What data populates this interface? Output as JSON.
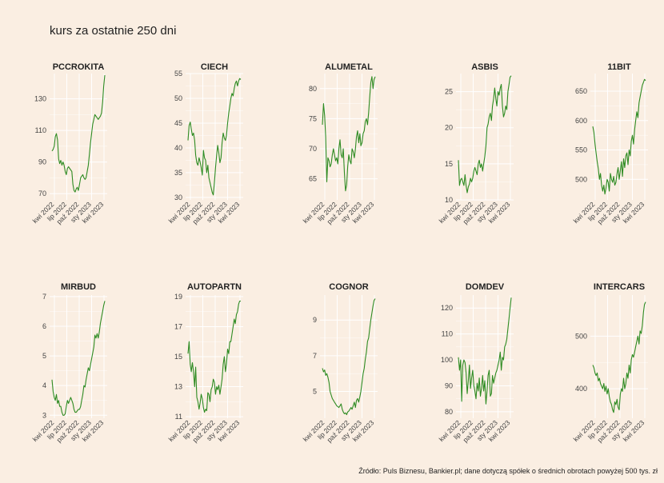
{
  "title": "kurs za ostatnie 250 dni",
  "source": "Źródło: Puls Biznesu, Bankier.pl; dane dotyczą spółek o średnich obrotach powyżej 500 tys. zł",
  "line_color": "#2e8b22",
  "background": "#faeee2",
  "x_ticks": [
    "kwi 2022",
    "lip 2022",
    "paź 2022",
    "sty 2023",
    "kwi 2023"
  ],
  "chart_data": [
    {
      "type": "line",
      "title": "PCCROKITA",
      "y_ticks": [
        70,
        90,
        110,
        130
      ],
      "ylim": [
        66,
        146
      ],
      "values": [
        97,
        98,
        100,
        106,
        108,
        104,
        92,
        89,
        91,
        88,
        90,
        88,
        84,
        82,
        86,
        87,
        86,
        85,
        84,
        76,
        72,
        71,
        73,
        74,
        72,
        76,
        80,
        81,
        82,
        80,
        79,
        80,
        84,
        88,
        95,
        102,
        108,
        114,
        117,
        120,
        119,
        118,
        117,
        118,
        119,
        121,
        128,
        138,
        145
      ]
    },
    {
      "type": "line",
      "title": "CIECH",
      "y_ticks": [
        30,
        35,
        40,
        45,
        50,
        55
      ],
      "ylim": [
        29.5,
        55
      ],
      "values": [
        41.5,
        44.5,
        45.2,
        43.8,
        42.5,
        43,
        41.5,
        38.5,
        37,
        36.5,
        38,
        37.2,
        36,
        34.5,
        39.5,
        38,
        37.5,
        35,
        36.5,
        34,
        33,
        32,
        31,
        30.5,
        33,
        36,
        38.5,
        40.5,
        39,
        37,
        38,
        41,
        43,
        42,
        41.5,
        42.5,
        45,
        47,
        48.5,
        50,
        51,
        50.5,
        52,
        53,
        53.5,
        52.5,
        53.5,
        54,
        53.8
      ]
    },
    {
      "type": "line",
      "title": "ALUMETAL",
      "y_ticks": [
        65,
        70,
        75,
        80
      ],
      "ylim": [
        61.5,
        82.5
      ],
      "values": [
        74,
        77.5,
        75.5,
        72,
        64.5,
        68.5,
        68,
        67,
        67.5,
        69,
        70,
        69,
        68,
        68.5,
        67.5,
        70,
        71.5,
        69,
        68.5,
        70,
        66,
        63,
        64,
        67,
        69,
        68,
        67.5,
        70,
        69.5,
        68.5,
        70,
        72,
        73,
        71,
        72.5,
        70.5,
        71,
        72.5,
        73,
        74.5,
        75,
        74,
        76,
        78.5,
        81,
        82,
        80,
        81.5,
        82
      ]
    },
    {
      "type": "line",
      "title": "ASBIS",
      "y_ticks": [
        10,
        15,
        20,
        25
      ],
      "ylim": [
        10,
        27.5
      ],
      "values": [
        15.5,
        12,
        12.8,
        13,
        12.5,
        12,
        13.5,
        12,
        11,
        11.8,
        12.2,
        13,
        12.5,
        13,
        14,
        14.5,
        14,
        13.5,
        15,
        15.5,
        14.5,
        15,
        14,
        15,
        16,
        17.5,
        20,
        20.5,
        21.5,
        22,
        21,
        23,
        24,
        25.5,
        24,
        23,
        25,
        24.5,
        25.5,
        26,
        23,
        21.5,
        22,
        23,
        22.5,
        25,
        26,
        27,
        27.2
      ]
    },
    {
      "type": "line",
      "title": "11BIT",
      "y_ticks": [
        500,
        550,
        600,
        650
      ],
      "ylim": [
        465,
        680
      ],
      "values": [
        590,
        580,
        560,
        545,
        530,
        518,
        500,
        510,
        490,
        480,
        490,
        475,
        485,
        500,
        495,
        480,
        510,
        500,
        495,
        505,
        490,
        495,
        510,
        520,
        500,
        515,
        530,
        505,
        535,
        520,
        540,
        545,
        525,
        550,
        540,
        565,
        575,
        560,
        585,
        600,
        615,
        605,
        630,
        640,
        650,
        660,
        665,
        670,
        668
      ]
    },
    {
      "type": "line",
      "title": "MIRBUD",
      "y_ticks": [
        3,
        4,
        5,
        6,
        7
      ],
      "ylim": [
        2.9,
        7.05
      ],
      "values": [
        4.2,
        3.8,
        3.6,
        3.5,
        3.7,
        3.4,
        3.5,
        3.3,
        3.3,
        3.1,
        3.0,
        3.0,
        3.05,
        3.3,
        3.5,
        3.4,
        3.5,
        3.6,
        3.5,
        3.4,
        3.2,
        3.1,
        3.1,
        3.15,
        3.2,
        3.2,
        3.3,
        3.5,
        3.7,
        4.0,
        3.95,
        4.2,
        4.4,
        4.6,
        4.5,
        4.7,
        4.9,
        5.1,
        5.3,
        5.7,
        5.6,
        5.75,
        5.6,
        5.8,
        6.1,
        6.3,
        6.5,
        6.7,
        6.85
      ]
    },
    {
      "type": "line",
      "title": "AUTOPARTN",
      "y_ticks": [
        11,
        13,
        15,
        17,
        19
      ],
      "ylim": [
        10.9,
        19.1
      ],
      "values": [
        15.2,
        16,
        14.5,
        14,
        14.6,
        14,
        13,
        14.3,
        12.3,
        12,
        11.5,
        11.9,
        12.5,
        12.2,
        11.6,
        11.3,
        11.5,
        11.4,
        12.6,
        12.5,
        12,
        12.8,
        13,
        13.5,
        13.3,
        12.5,
        13,
        12.8,
        13.1,
        12.5,
        13,
        13.5,
        14.5,
        15,
        14,
        14.5,
        15.5,
        15.2,
        16,
        16,
        16.5,
        17,
        17.5,
        17.2,
        17.8,
        18,
        18.5,
        18.7,
        18.7
      ]
    },
    {
      "type": "line",
      "title": "COGNOR",
      "y_ticks": [
        5,
        7,
        9
      ],
      "ylim": [
        3.5,
        10.4
      ],
      "values": [
        6.3,
        6.1,
        6.2,
        5.9,
        6.0,
        5.8,
        5.5,
        5.0,
        4.8,
        4.6,
        4.5,
        4.4,
        4.3,
        4.2,
        4.15,
        4.1,
        4.2,
        4.3,
        4.0,
        3.85,
        3.75,
        3.8,
        3.7,
        3.85,
        3.9,
        4.0,
        4.1,
        4.0,
        4.2,
        4.4,
        4.1,
        4.5,
        4.6,
        4.4,
        4.7,
        5.0,
        5.5,
        6.0,
        6.3,
        6.8,
        7.2,
        7.8,
        8.0,
        8.5,
        9.0,
        9.4,
        9.8,
        10.1,
        10.2
      ]
    },
    {
      "type": "line",
      "title": "DOMDEV",
      "y_ticks": [
        80,
        90,
        100,
        110,
        120
      ],
      "ylim": [
        77.5,
        125
      ],
      "values": [
        101,
        96,
        100,
        84,
        98,
        100,
        99,
        95,
        87,
        92,
        98,
        89,
        93,
        96,
        90,
        88,
        85,
        91,
        88,
        93,
        86,
        89,
        94,
        88,
        92,
        83,
        88,
        94,
        96,
        86,
        87,
        94,
        91,
        93,
        95,
        96,
        98,
        100,
        103,
        96,
        101,
        100,
        105,
        106,
        108,
        112,
        116,
        120,
        124
      ]
    },
    {
      "type": "line",
      "title": "INTERCARS",
      "y_ticks": [
        400,
        500
      ],
      "ylim": [
        344,
        578
      ],
      "values": [
        445,
        440,
        430,
        425,
        430,
        415,
        420,
        410,
        405,
        400,
        410,
        395,
        405,
        390,
        400,
        385,
        375,
        370,
        360,
        355,
        375,
        370,
        380,
        365,
        360,
        390,
        400,
        395,
        420,
        400,
        410,
        430,
        420,
        445,
        430,
        455,
        465,
        460,
        470,
        480,
        490,
        500,
        485,
        510,
        505,
        520,
        545,
        560,
        565
      ]
    }
  ]
}
